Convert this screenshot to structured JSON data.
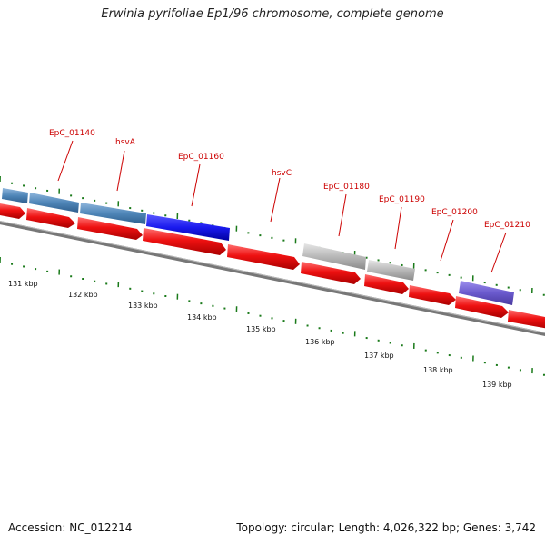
{
  "title": "Erwinia pyrifoliae Ep1/96 chromosome, complete genome",
  "footer": {
    "accession_label": "Accession:",
    "accession": "NC_012214",
    "topology_label": "Topology:",
    "topology": "circular",
    "length_label": "Length:",
    "length": "4,026,322 bp",
    "genes_label": "Genes:",
    "genes": "3,742"
  },
  "colors": {
    "forward_gene": "#ee1111",
    "reverse_gene_steel": "#4f86b8",
    "reverse_gene_blue": "#1a1aee",
    "reverse_gene_gray": "#b8b8b8",
    "reverse_gene_purple": "#6a5acd",
    "backbone": "#777777",
    "ticks": "#1a7a1a",
    "label_line": "#cc0000"
  },
  "gene_labels": [
    "EpC_01140",
    "hsvA",
    "EpC_01160",
    "hsvC",
    "EpC_01180",
    "EpC_01190",
    "EpC_01200",
    "EpC_01210"
  ],
  "kbp_labels": [
    "131 kbp",
    "132 kbp",
    "133 kbp",
    "134 kbp",
    "135 kbp",
    "136 kbp",
    "137 kbp",
    "138 kbp",
    "139 kbp"
  ]
}
